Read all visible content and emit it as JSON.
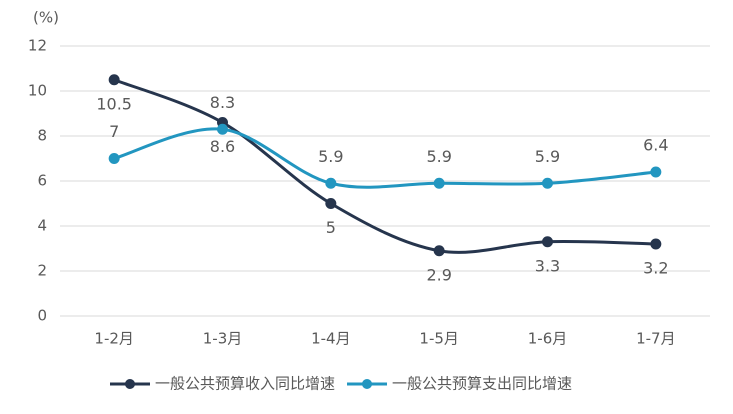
{
  "chart_data": {
    "type": "line",
    "ylabel": "(%)",
    "categories": [
      "1-2月",
      "1-3月",
      "1-4月",
      "1-5月",
      "1-6月",
      "1-7月"
    ],
    "series": [
      {
        "name": "一般公共预算收入同比增速",
        "color": "#26354d",
        "values": [
          10.5,
          8.6,
          5,
          2.9,
          3.3,
          3.2
        ],
        "label_position": "below"
      },
      {
        "name": "一般公共预算支出同比增速",
        "color": "#2296c0",
        "values": [
          7,
          8.3,
          5.9,
          5.9,
          5.9,
          6.4
        ],
        "label_position": "above"
      }
    ],
    "ylim": [
      0,
      12
    ],
    "yticks": [
      0,
      2,
      4,
      6,
      8,
      10,
      12
    ],
    "grid": true,
    "smooth": true,
    "legend": "bottom"
  }
}
